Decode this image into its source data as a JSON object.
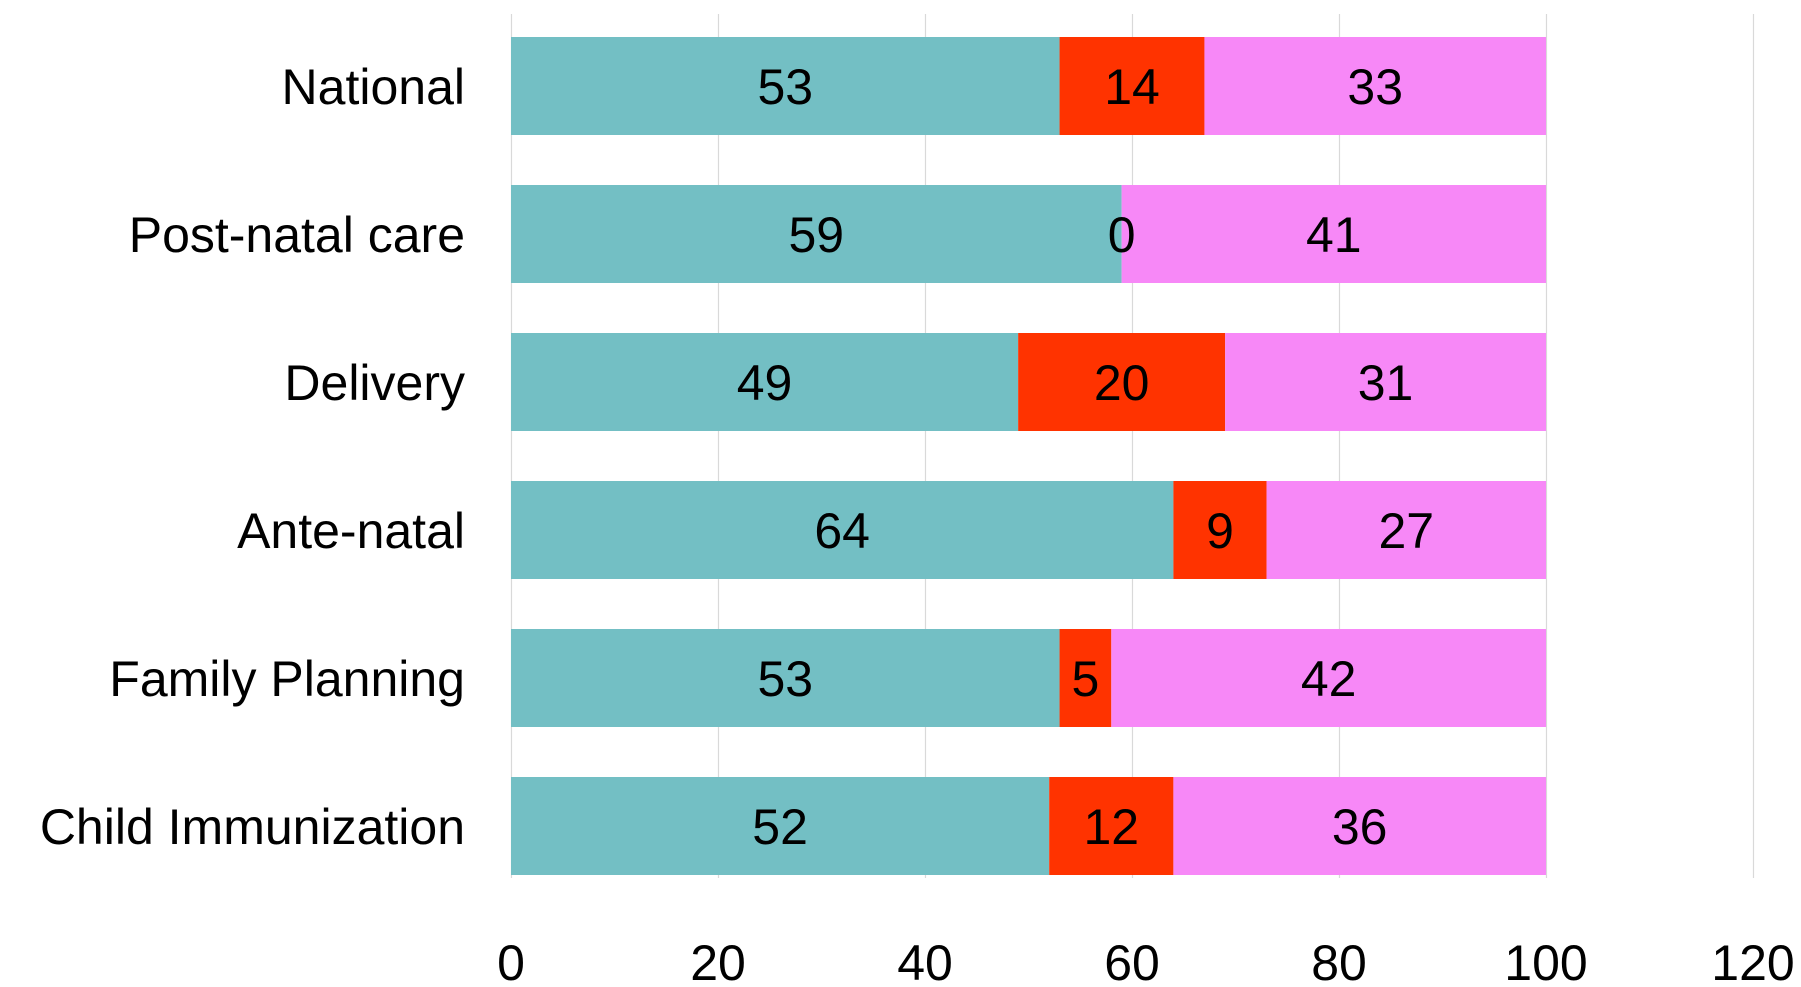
{
  "chart_data": {
    "type": "bar",
    "orientation": "horizontal",
    "stacked": true,
    "title": "",
    "xlabel": "",
    "ylabel": "",
    "xlim": [
      0,
      120
    ],
    "x_ticks": [
      0,
      20,
      40,
      60,
      80,
      100,
      120
    ],
    "grid": "vertical",
    "legend": "none",
    "categories": [
      "National",
      "Post-natal care",
      "Delivery",
      "Ante-natal",
      "Family Planning",
      "Child Immunization"
    ],
    "series": [
      {
        "color": "#73BFC4",
        "values": [
          53,
          59,
          49,
          64,
          53,
          52
        ]
      },
      {
        "color": "#FF3300",
        "values": [
          14,
          0,
          20,
          9,
          5,
          12
        ]
      },
      {
        "color": "#F788F7",
        "values": [
          33,
          41,
          31,
          27,
          42,
          36
        ]
      }
    ],
    "data_labels": true
  }
}
